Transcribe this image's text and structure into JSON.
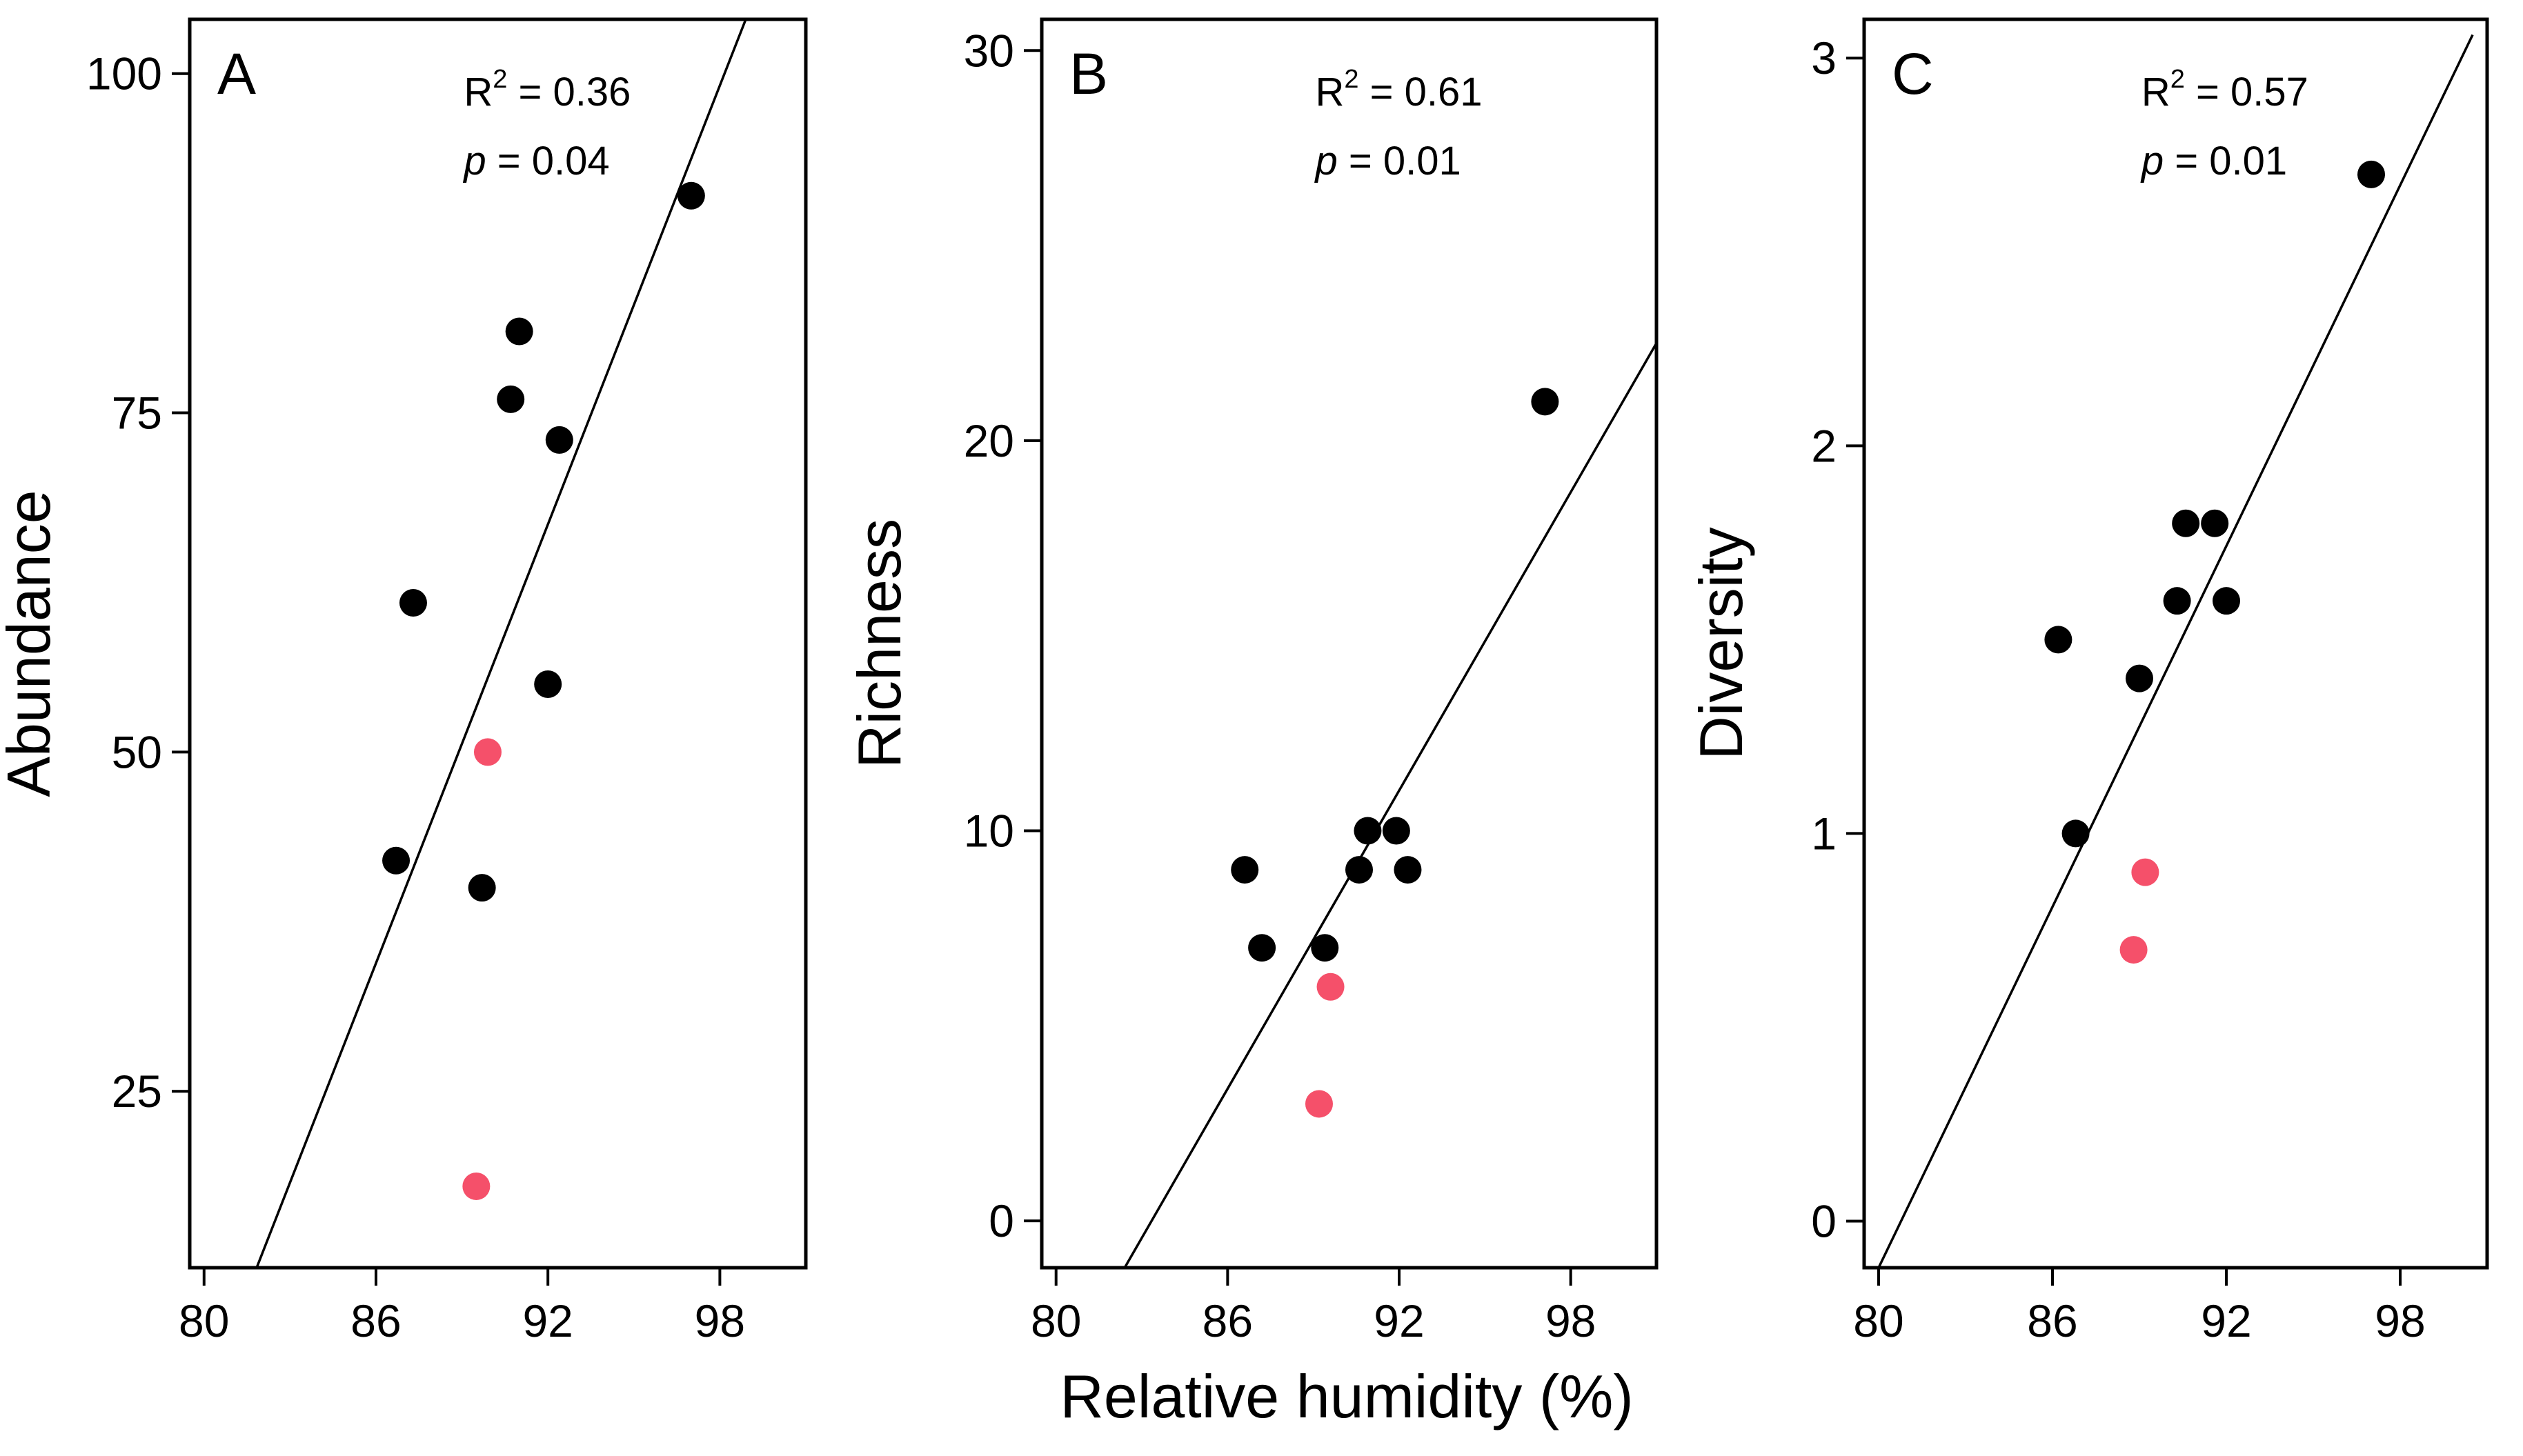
{
  "figure": {
    "shared_xlabel": "Relative humidity (%)"
  },
  "colors": {
    "black_point": "#000000",
    "red_point": "#f5506a",
    "line": "#000000"
  },
  "chart_data": [
    {
      "type": "scatter",
      "panel_letter": "A",
      "ylabel": "Abundance",
      "xlabel": "",
      "xlim": [
        79.5,
        101
      ],
      "ylim": [
        12,
        104
      ],
      "xticks": [
        80,
        86,
        92,
        98
      ],
      "yticks": [
        25,
        50,
        75,
        100
      ],
      "grid": false,
      "stats": {
        "r2_label": "R",
        "r2_sup": "2",
        "r2_value": " = 0.36",
        "p_label": "p",
        "p_value": " = 0.04"
      },
      "series": [
        {
          "name": "black",
          "color": "#000000",
          "points": [
            [
              86.7,
              42
            ],
            [
              87.3,
              61
            ],
            [
              89.7,
              40
            ],
            [
              90.7,
              76
            ],
            [
              91.0,
              81
            ],
            [
              92.0,
              55
            ],
            [
              92.4,
              73
            ],
            [
              97.0,
              91
            ]
          ]
        },
        {
          "name": "red",
          "color": "#f5506a",
          "points": [
            [
              89.5,
              18
            ],
            [
              89.9,
              50
            ]
          ]
        }
      ],
      "fit": {
        "x": [
          80.5,
          100.0
        ],
        "y": [
          4.8,
          109.9
        ]
      }
    },
    {
      "type": "scatter",
      "panel_letter": "B",
      "ylabel": "Richness",
      "xlabel": "Relative humidity (%)",
      "xlim": [
        79.5,
        101
      ],
      "ylim": [
        -1.2,
        30.8
      ],
      "xticks": [
        80,
        86,
        92,
        98
      ],
      "yticks": [
        0,
        10,
        20,
        30
      ],
      "grid": false,
      "stats": {
        "r2_label": "R",
        "r2_sup": "2",
        "r2_value": " = 0.61",
        "p_label": "p",
        "p_value": " = 0.01"
      },
      "series": [
        {
          "name": "black",
          "color": "#000000",
          "points": [
            [
              86.6,
              9
            ],
            [
              87.2,
              7
            ],
            [
              89.4,
              7
            ],
            [
              90.6,
              9
            ],
            [
              90.9,
              10
            ],
            [
              91.9,
              10
            ],
            [
              92.3,
              9
            ],
            [
              97.1,
              21
            ]
          ]
        },
        {
          "name": "red",
          "color": "#f5506a",
          "points": [
            [
              89.2,
              3
            ],
            [
              89.6,
              6
            ]
          ]
        }
      ],
      "fit": {
        "x": [
          82.4,
          101.0
        ],
        "y": [
          -1.2,
          22.5
        ]
      }
    },
    {
      "type": "scatter",
      "panel_letter": "C",
      "ylabel": "Diversity",
      "xlabel": "",
      "xlim": [
        79.5,
        101
      ],
      "ylim": [
        -0.12,
        3.1
      ],
      "xticks": [
        80,
        86,
        92,
        98
      ],
      "yticks": [
        0,
        1,
        2,
        3
      ],
      "grid": false,
      "stats": {
        "r2_label": "R",
        "r2_sup": "2",
        "r2_value": " = 0.57",
        "p_label": "p",
        "p_value": " = 0.01"
      },
      "series": [
        {
          "name": "black",
          "color": "#000000",
          "points": [
            [
              86.2,
              1.5
            ],
            [
              86.8,
              1.0
            ],
            [
              89.0,
              1.4
            ],
            [
              90.3,
              1.6
            ],
            [
              90.6,
              1.8
            ],
            [
              91.6,
              1.8
            ],
            [
              92.0,
              1.6
            ],
            [
              97.0,
              2.7
            ]
          ]
        },
        {
          "name": "red",
          "color": "#f5506a",
          "points": [
            [
              88.8,
              0.7
            ],
            [
              89.2,
              0.9
            ]
          ]
        }
      ],
      "fit": {
        "x": [
          80.0,
          100.5
        ],
        "y": [
          -0.12,
          3.06
        ]
      }
    }
  ]
}
